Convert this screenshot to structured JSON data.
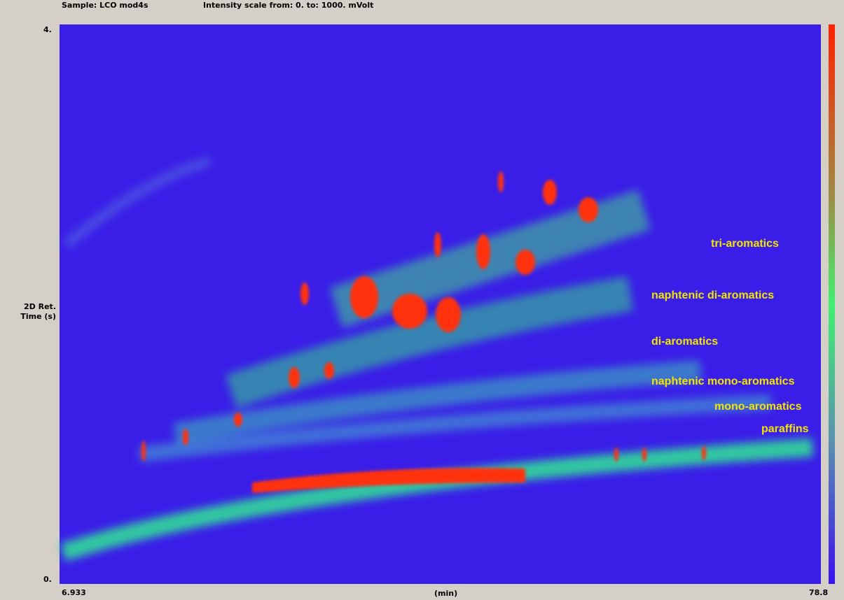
{
  "header": {
    "sample": "Sample: LCO mod4s",
    "intensity_scale": "Intensity scale from: 0. to: 1000. mVolt"
  },
  "y_axis": {
    "top": "4.",
    "bottom": "0.",
    "title": [
      "2D Ret.",
      "Time (s)"
    ]
  },
  "x_axis": {
    "left": "6.933",
    "title": "(min)",
    "right": "78.8"
  },
  "labels": [
    "tri-aromatics",
    "naphtenic di-aromatics",
    "di-aromatics",
    "naphtenic mono-aromatics",
    "mono-aromatics",
    "paraffins"
  ]
}
